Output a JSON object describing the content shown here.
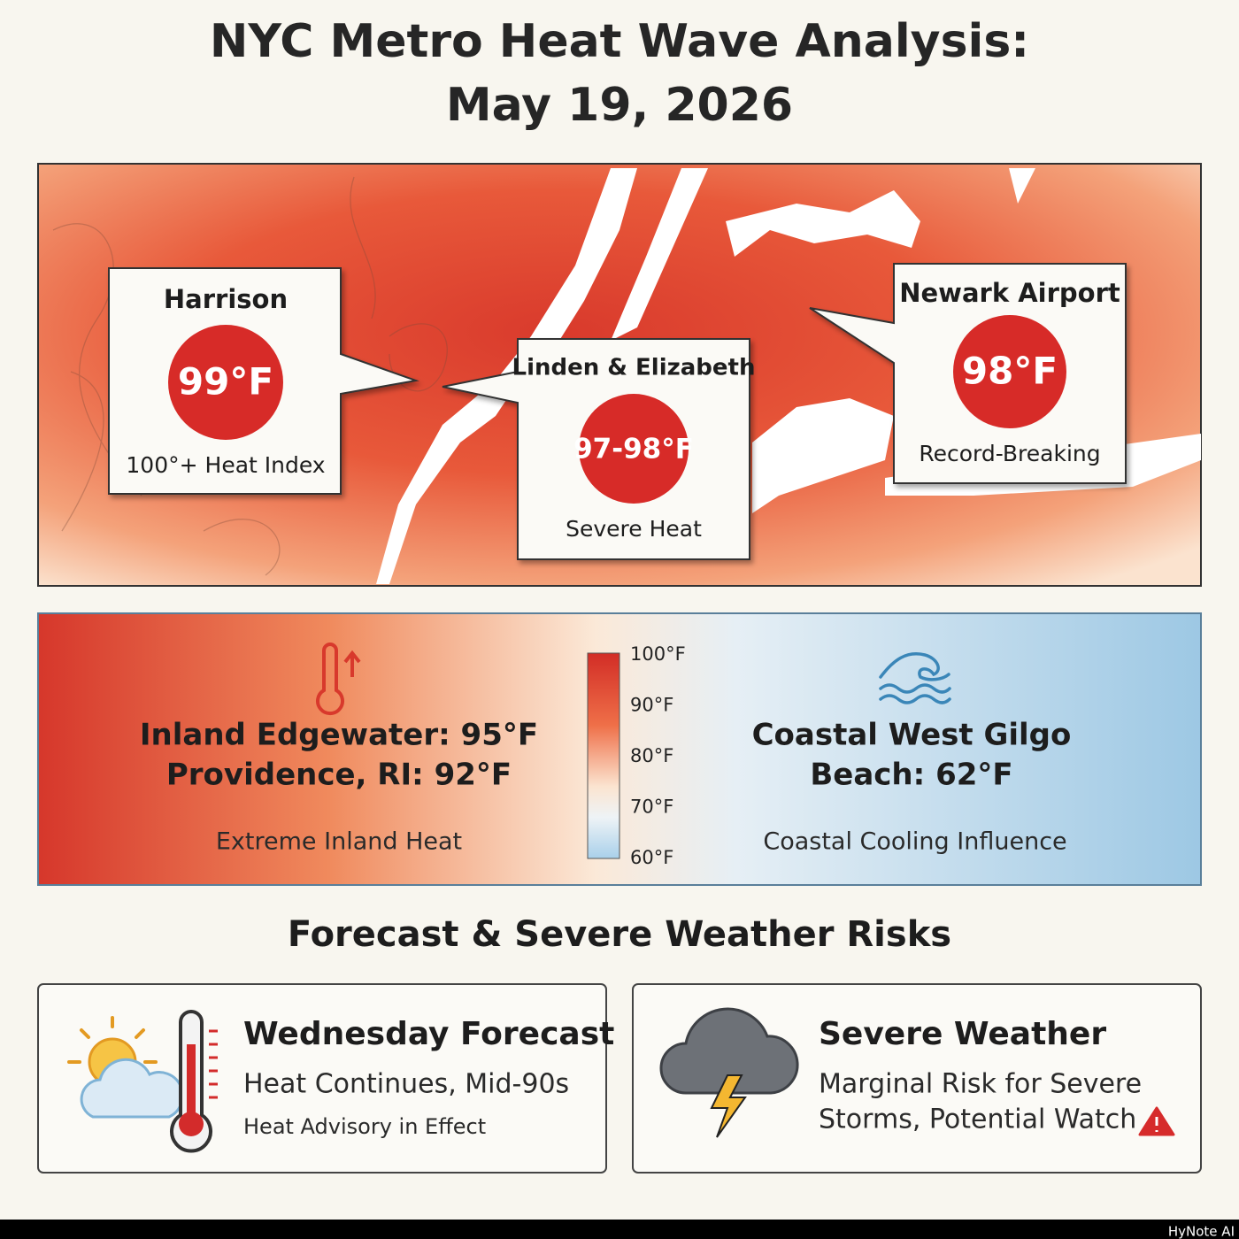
{
  "header": {
    "title_lines": [
      "NYC Metro Heat Wave Analysis:",
      "May 19, 2026"
    ]
  },
  "map": {
    "callouts": [
      {
        "label": "Harrison",
        "value": "99°F",
        "note": "100°+ Heat Index"
      },
      {
        "label": "Linden & Elizabeth",
        "value": "97-98°F",
        "note": "Severe Heat"
      },
      {
        "label": "Newark Airport",
        "value": "98°F",
        "note": "Record-Breaking"
      }
    ]
  },
  "comparison": {
    "inland": {
      "lines": [
        "Inland Edgewater: 95°F",
        "Providence, RI: 92°F"
      ],
      "note": "Extreme Inland Heat"
    },
    "scale": [
      "100°F",
      "90°F",
      "80°F",
      "70°F",
      "60°F"
    ],
    "coastal": {
      "lines": [
        "Coastal West Gilgo",
        "Beach: 62°F"
      ],
      "note": "Coastal Cooling Influence"
    }
  },
  "forecast": {
    "heading": "Forecast & Severe Weather Risks",
    "cards": [
      {
        "title": "Wednesday Forecast",
        "lines": [
          "Heat Continues, Mid-90s"
        ],
        "small": "Heat Advisory in Effect"
      },
      {
        "title": "Severe Weather",
        "lines": [
          "Marginal Risk for Severe",
          "Storms, Potential Watch"
        ]
      }
    ]
  },
  "footer": {
    "brand": "HyNote AI"
  }
}
